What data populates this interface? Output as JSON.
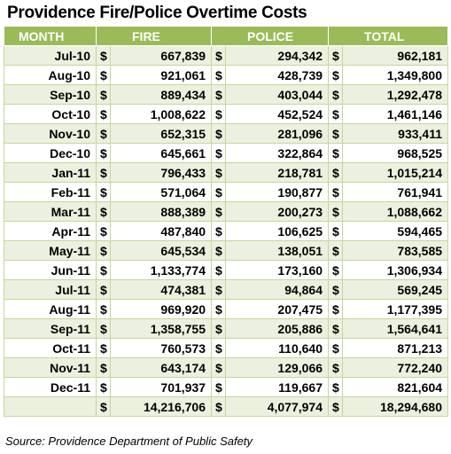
{
  "title": "Providence Fire/Police Overtime Costs",
  "source": "Source: Providence Department of Public Safety",
  "colors": {
    "header_bg": "#9bbb59",
    "header_text": "#ffffff",
    "band": "#ebf1de",
    "grid": "#c4d79b"
  },
  "chart_data": {
    "type": "table",
    "title": "Providence Fire/Police Overtime Costs",
    "columns": [
      "MONTH",
      "FIRE",
      "POLICE",
      "TOTAL"
    ],
    "currency_symbol": "$",
    "rows": [
      {
        "month": "Jul-10",
        "fire": "667,839",
        "police": "294,342",
        "total": "962,181"
      },
      {
        "month": "Aug-10",
        "fire": "921,061",
        "police": "428,739",
        "total": "1,349,800"
      },
      {
        "month": "Sep-10",
        "fire": "889,434",
        "police": "403,044",
        "total": "1,292,478"
      },
      {
        "month": "Oct-10",
        "fire": "1,008,622",
        "police": "452,524",
        "total": "1,461,146"
      },
      {
        "month": "Nov-10",
        "fire": "652,315",
        "police": "281,096",
        "total": "933,411"
      },
      {
        "month": "Dec-10",
        "fire": "645,661",
        "police": "322,864",
        "total": "968,525"
      },
      {
        "month": "Jan-11",
        "fire": "796,433",
        "police": "218,781",
        "total": "1,015,214"
      },
      {
        "month": "Feb-11",
        "fire": "571,064",
        "police": "190,877",
        "total": "761,941"
      },
      {
        "month": "Mar-11",
        "fire": "888,389",
        "police": "200,273",
        "total": "1,088,662"
      },
      {
        "month": "Apr-11",
        "fire": "487,840",
        "police": "106,625",
        "total": "594,465"
      },
      {
        "month": "May-11",
        "fire": "645,534",
        "police": "138,051",
        "total": "783,585"
      },
      {
        "month": "Jun-11",
        "fire": "1,133,774",
        "police": "173,160",
        "total": "1,306,934"
      },
      {
        "month": "Jul-11",
        "fire": "474,381",
        "police": "94,864",
        "total": "569,245"
      },
      {
        "month": "Aug-11",
        "fire": "969,920",
        "police": "207,475",
        "total": "1,177,395"
      },
      {
        "month": "Sep-11",
        "fire": "1,358,755",
        "police": "205,886",
        "total": "1,564,641"
      },
      {
        "month": "Oct-11",
        "fire": "760,573",
        "police": "110,640",
        "total": "871,213"
      },
      {
        "month": "Nov-11",
        "fire": "643,174",
        "police": "129,066",
        "total": "772,240"
      },
      {
        "month": "Dec-11",
        "fire": "701,937",
        "police": "119,667",
        "total": "821,604"
      }
    ],
    "totals": {
      "fire": "14,216,706",
      "police": "4,077,974",
      "total": "18,294,680"
    }
  }
}
